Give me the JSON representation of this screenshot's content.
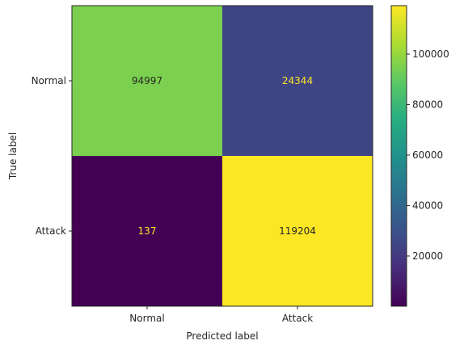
{
  "chart_data": {
    "type": "heatmap",
    "title": "",
    "xlabel": "Predicted label",
    "ylabel": "True label",
    "x_categories": [
      "Normal",
      "Attack"
    ],
    "y_categories": [
      "Normal",
      "Attack"
    ],
    "matrix": [
      [
        94997,
        24344
      ],
      [
        137,
        119204
      ]
    ],
    "cell_labels": [
      [
        "94997",
        "24344"
      ],
      [
        "137",
        "119204"
      ]
    ],
    "colormap": "viridis",
    "colorbar": {
      "vmin": 137,
      "vmax": 119204,
      "ticks": [
        20000,
        40000,
        60000,
        80000,
        100000
      ],
      "tick_labels": [
        "20000",
        "40000",
        "60000",
        "80000",
        "100000"
      ]
    },
    "grid": false,
    "label_colors": {
      "on_light": "#262626",
      "on_dark": "#fde725"
    }
  }
}
